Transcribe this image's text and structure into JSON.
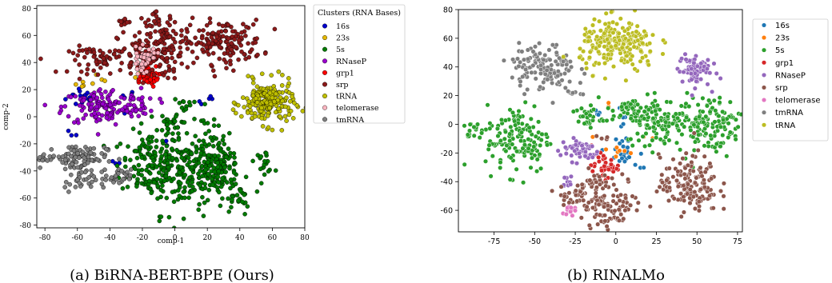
{
  "chart_data": [
    {
      "type": "scatter",
      "caption": "(a) BiRNA-BERT-BPE (Ours)",
      "xlabel": "comp-1",
      "ylabel": "comp-2",
      "xlim": [
        -85,
        80
      ],
      "ylim": [
        -82,
        82
      ],
      "xticks": [
        -80,
        -60,
        -40,
        -20,
        0,
        20,
        40,
        60,
        80
      ],
      "yticks": [
        -80,
        -60,
        -40,
        -20,
        0,
        20,
        40,
        60,
        80
      ],
      "grid": false,
      "legend": {
        "title": "Clusters (RNA Bases)",
        "placement": "outside-right"
      },
      "series": [
        {
          "name": "16s",
          "color": "#0000cc",
          "clusters": [
            [
              -57,
              15,
              5,
              4,
              14
            ],
            [
              -30,
              13,
              3,
              4,
              5
            ],
            [
              -63,
              -10,
              2,
              2,
              3
            ],
            [
              -35,
              -34,
              2,
              2,
              3
            ],
            [
              -5,
              -22,
              1,
              2,
              2
            ],
            [
              20,
              12,
              3,
              2,
              5
            ]
          ]
        },
        {
          "name": "23s",
          "color": "#e6b800",
          "clusters": [
            [
              -53,
              24,
              4,
              2,
              5
            ],
            [
              -46,
              28,
              2,
              2,
              3
            ],
            [
              -24,
              30,
              2,
              2,
              2
            ]
          ]
        },
        {
          "name": "5s",
          "color": "#007a00",
          "clusters": [
            [
              -15,
              -35,
              9,
              12,
              120
            ],
            [
              5,
              -40,
              14,
              16,
              140
            ],
            [
              22,
              -30,
              8,
              12,
              80
            ],
            [
              18,
              -45,
              10,
              10,
              60
            ],
            [
              0,
              -5,
              5,
              5,
              30
            ],
            [
              30,
              -38,
              5,
              6,
              40
            ],
            [
              55,
              -33,
              3,
              4,
              20
            ],
            [
              38,
              -60,
              4,
              6,
              25
            ],
            [
              5,
              10,
              3,
              2,
              10
            ]
          ]
        },
        {
          "name": "RNaseP",
          "color": "#9900cc",
          "clusters": [
            [
              -45,
              7,
              12,
              7,
              130
            ],
            [
              -20,
              10,
              5,
              4,
              25
            ]
          ]
        },
        {
          "name": "grp1",
          "color": "#ff0000",
          "clusters": [
            [
              -18,
              30,
              4,
              4,
              60
            ]
          ]
        },
        {
          "name": "srp",
          "color": "#8b1a1a",
          "clusters": [
            [
              -15,
              45,
              10,
              9,
              110
            ],
            [
              30,
              55,
              12,
              8,
              150
            ],
            [
              -45,
              42,
              10,
              5,
              60
            ],
            [
              -10,
              68,
              6,
              4,
              30
            ],
            [
              -32,
              70,
              2,
              2,
              10
            ],
            [
              -5,
              52,
              8,
              8,
              40
            ]
          ]
        },
        {
          "name": "tRNA",
          "color": "#bfbf00",
          "clusters": [
            [
              57,
              10,
              8,
              8,
              200
            ]
          ]
        },
        {
          "name": "telomerase",
          "color": "#ffb6c1",
          "clusters": [
            [
              -20,
              40,
              3,
              4,
              30
            ],
            [
              -15,
              48,
              3,
              3,
              15
            ]
          ]
        },
        {
          "name": "tmRNA",
          "color": "#808080",
          "clusters": [
            [
              -60,
              -30,
              9,
              5,
              90
            ],
            [
              -58,
              -48,
              5,
              4,
              30
            ],
            [
              -35,
              -45,
              4,
              3,
              25
            ],
            [
              -80,
              -30,
              3,
              2,
              10
            ]
          ]
        }
      ]
    },
    {
      "type": "scatter",
      "caption": "(b) RINALMo",
      "xlabel": "",
      "ylabel": "",
      "xlim": [
        -97,
        78
      ],
      "ylim": [
        -75,
        80
      ],
      "xticks": [
        -75,
        -50,
        -25,
        0,
        25,
        50,
        75
      ],
      "yticks": [
        -60,
        -40,
        -20,
        0,
        20,
        40,
        60,
        80
      ],
      "grid": false,
      "legend": {
        "title": "",
        "placement": "outside-right"
      },
      "series": [
        {
          "name": "16s",
          "color": "#1f77b4",
          "clusters": [
            [
              3,
              -20,
              6,
              6,
              25
            ],
            [
              -10,
              8,
              3,
              2,
              4
            ],
            [
              5,
              5,
              3,
              3,
              5
            ],
            [
              20,
              -30,
              2,
              2,
              2
            ]
          ]
        },
        {
          "name": "23s",
          "color": "#ff7f0e",
          "clusters": [
            [
              -2,
              -18,
              5,
              5,
              8
            ],
            [
              -3,
              12,
              2,
              2,
              2
            ],
            [
              20,
              -6,
              2,
              2,
              2
            ]
          ]
        },
        {
          "name": "5s",
          "color": "#2ca02c",
          "clusters": [
            [
              -60,
              -10,
              10,
              12,
              140
            ],
            [
              30,
              2,
              12,
              8,
              120
            ],
            [
              58,
              0,
              10,
              10,
              120
            ],
            [
              10,
              10,
              6,
              4,
              40
            ],
            [
              -18,
              5,
              5,
              4,
              30
            ],
            [
              -88,
              -5,
              3,
              3,
              15
            ]
          ]
        },
        {
          "name": "grp1",
          "color": "#d62728",
          "clusters": [
            [
              -7,
              -29,
              4,
              4,
              40
            ]
          ]
        },
        {
          "name": "RNaseP",
          "color": "#9467bd",
          "clusters": [
            [
              48,
              38,
              5,
              6,
              70
            ],
            [
              -22,
              -18,
              6,
              4,
              50
            ],
            [
              -30,
              -40,
              3,
              3,
              10
            ]
          ]
        },
        {
          "name": "srp",
          "color": "#8c564b",
          "clusters": [
            [
              45,
              -42,
              9,
              10,
              150
            ],
            [
              -2,
              -55,
              9,
              9,
              100
            ],
            [
              -25,
              -50,
              6,
              5,
              40
            ],
            [
              -15,
              -38,
              4,
              3,
              15
            ],
            [
              -6,
              -10,
              2,
              2,
              4
            ]
          ]
        },
        {
          "name": "telomerase",
          "color": "#e377c2",
          "clusters": [
            [
              -30,
              -60,
              2,
              2,
              12
            ]
          ]
        },
        {
          "name": "tmRNA",
          "color": "#7f7f7f",
          "clusters": [
            [
              -45,
              40,
              10,
              8,
              130
            ],
            [
              -25,
              21,
              3,
              2,
              8
            ]
          ]
        },
        {
          "name": "tRNA",
          "color": "#bcbd22",
          "clusters": [
            [
              2,
              55,
              12,
              9,
              220
            ]
          ]
        }
      ]
    }
  ]
}
